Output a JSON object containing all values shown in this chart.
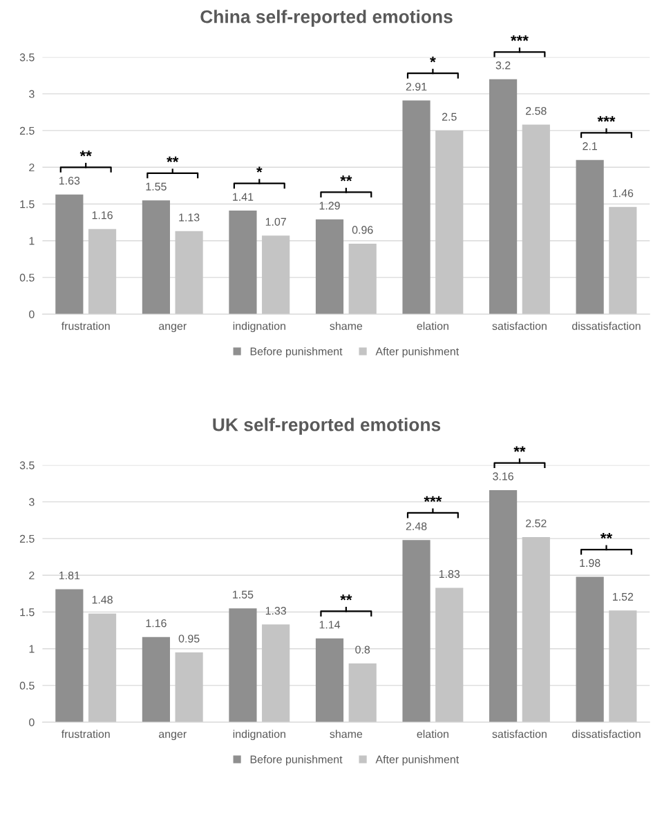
{
  "chart_data": [
    {
      "type": "bar",
      "title": "China self-reported emotions",
      "categories": [
        "frustration",
        "anger",
        "indignation",
        "shame",
        "elation",
        "satisfaction",
        "dissatisfaction"
      ],
      "series": [
        {
          "name": "Before punishment",
          "color": "#8f8f8f",
          "values": [
            1.63,
            1.55,
            1.41,
            1.29,
            2.91,
            3.2,
            2.1
          ]
        },
        {
          "name": "After punishment",
          "color": "#c4c4c4",
          "values": [
            1.16,
            1.13,
            1.07,
            0.96,
            2.5,
            2.58,
            1.46
          ]
        }
      ],
      "ylim": [
        0,
        3.5
      ],
      "yticks": [
        0,
        0.5,
        1,
        1.5,
        2,
        2.5,
        3,
        3.5
      ],
      "grid": "y",
      "legend": "bottom",
      "data_labels": true,
      "annotations": [
        "**",
        "**",
        "*",
        "**",
        "*",
        "***",
        "***"
      ]
    },
    {
      "type": "bar",
      "title": "UK self-reported emotions",
      "categories": [
        "frustration",
        "anger",
        "indignation",
        "shame",
        "elation",
        "satisfaction",
        "dissatisfaction"
      ],
      "series": [
        {
          "name": "Before punishment",
          "color": "#8f8f8f",
          "values": [
            1.81,
            1.16,
            1.55,
            1.14,
            2.48,
            3.16,
            1.98
          ]
        },
        {
          "name": "After punishment",
          "color": "#c4c4c4",
          "values": [
            1.48,
            0.95,
            1.33,
            0.8,
            1.83,
            2.52,
            1.52
          ]
        }
      ],
      "ylim": [
        0,
        3.5
      ],
      "yticks": [
        0,
        0.5,
        1,
        1.5,
        2,
        2.5,
        3,
        3.5
      ],
      "grid": "y",
      "legend": "bottom",
      "data_labels": true,
      "annotations": [
        "**",
        "***",
        "**",
        "**"
      ]
    }
  ]
}
